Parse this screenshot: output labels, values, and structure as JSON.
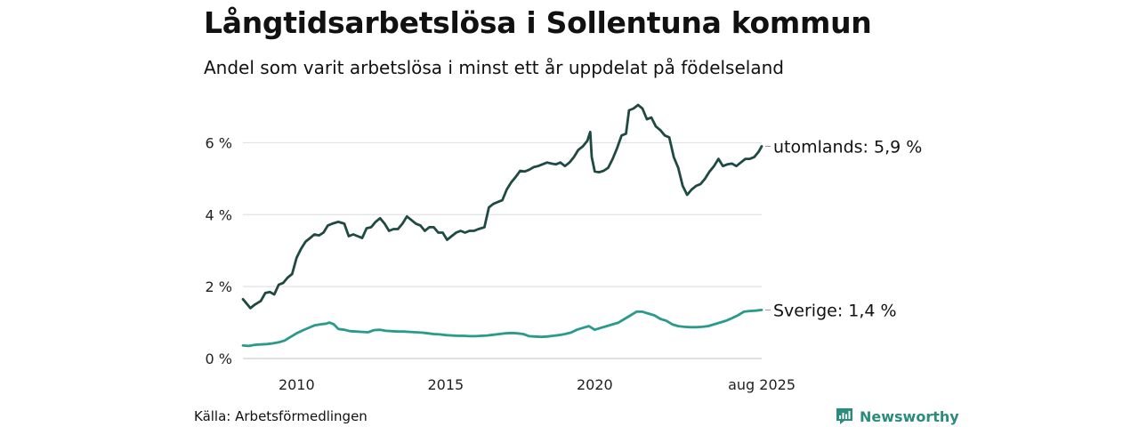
{
  "title": "Långtidsarbetslösa i Sollentuna kommun",
  "subtitle": "Andel som varit arbetslösa i minst ett år uppdelat på födelseland",
  "source": "Källa: Arbetsförmedlingen",
  "brand": {
    "name": "Newsworthy",
    "icon": "newsworthy-logo-icon",
    "color": "#2a8c7e"
  },
  "chart_data": {
    "type": "line",
    "title": "Långtidsarbetslösa i Sollentuna kommun",
    "subtitle": "Andel som varit arbetslösa i minst ett år uppdelat på födelseland",
    "ylim": [
      0,
      7
    ],
    "xlim": [
      2008.2,
      2025.6
    ],
    "y_ticks": [
      {
        "value": 0,
        "label": "0 %"
      },
      {
        "value": 2,
        "label": "2 %"
      },
      {
        "value": 4,
        "label": "4 %"
      },
      {
        "value": 6,
        "label": "6 %"
      }
    ],
    "x_ticks": [
      {
        "value": 2010,
        "label": "2010"
      },
      {
        "value": 2015,
        "label": "2015"
      },
      {
        "value": 2020,
        "label": "2020"
      },
      {
        "value": 2025.6,
        "label": "aug 2025"
      }
    ],
    "grid": "horizontal",
    "series": [
      {
        "name": "utomlands",
        "end_label": "utomlands: 5,9 %",
        "color": "#1f4a42",
        "points": [
          [
            2008.2,
            1.65
          ],
          [
            2008.3,
            1.55
          ],
          [
            2008.45,
            1.4
          ],
          [
            2008.6,
            1.5
          ],
          [
            2008.8,
            1.6
          ],
          [
            2008.95,
            1.82
          ],
          [
            2009.1,
            1.85
          ],
          [
            2009.25,
            1.78
          ],
          [
            2009.4,
            2.05
          ],
          [
            2009.55,
            2.1
          ],
          [
            2009.7,
            2.25
          ],
          [
            2009.85,
            2.35
          ],
          [
            2010.0,
            2.8
          ],
          [
            2010.15,
            3.05
          ],
          [
            2010.3,
            3.25
          ],
          [
            2010.45,
            3.35
          ],
          [
            2010.6,
            3.45
          ],
          [
            2010.75,
            3.42
          ],
          [
            2010.9,
            3.5
          ],
          [
            2011.05,
            3.7
          ],
          [
            2011.2,
            3.75
          ],
          [
            2011.4,
            3.8
          ],
          [
            2011.6,
            3.75
          ],
          [
            2011.75,
            3.4
          ],
          [
            2011.9,
            3.45
          ],
          [
            2012.05,
            3.4
          ],
          [
            2012.2,
            3.35
          ],
          [
            2012.35,
            3.62
          ],
          [
            2012.5,
            3.65
          ],
          [
            2012.65,
            3.8
          ],
          [
            2012.8,
            3.9
          ],
          [
            2012.95,
            3.75
          ],
          [
            2013.1,
            3.55
          ],
          [
            2013.25,
            3.6
          ],
          [
            2013.4,
            3.6
          ],
          [
            2013.55,
            3.75
          ],
          [
            2013.7,
            3.95
          ],
          [
            2013.85,
            3.85
          ],
          [
            2014.0,
            3.75
          ],
          [
            2014.15,
            3.7
          ],
          [
            2014.3,
            3.55
          ],
          [
            2014.45,
            3.65
          ],
          [
            2014.6,
            3.65
          ],
          [
            2014.75,
            3.5
          ],
          [
            2014.9,
            3.5
          ],
          [
            2015.05,
            3.3
          ],
          [
            2015.2,
            3.4
          ],
          [
            2015.35,
            3.5
          ],
          [
            2015.5,
            3.55
          ],
          [
            2015.65,
            3.5
          ],
          [
            2015.8,
            3.55
          ],
          [
            2015.95,
            3.55
          ],
          [
            2016.1,
            3.6
          ],
          [
            2016.3,
            3.65
          ],
          [
            2016.45,
            4.2
          ],
          [
            2016.6,
            4.3
          ],
          [
            2016.75,
            4.35
          ],
          [
            2016.9,
            4.4
          ],
          [
            2017.05,
            4.7
          ],
          [
            2017.2,
            4.9
          ],
          [
            2017.35,
            5.05
          ],
          [
            2017.5,
            5.22
          ],
          [
            2017.65,
            5.2
          ],
          [
            2017.8,
            5.25
          ],
          [
            2017.95,
            5.32
          ],
          [
            2018.1,
            5.35
          ],
          [
            2018.25,
            5.4
          ],
          [
            2018.4,
            5.45
          ],
          [
            2018.55,
            5.42
          ],
          [
            2018.7,
            5.4
          ],
          [
            2018.85,
            5.45
          ],
          [
            2019.0,
            5.35
          ],
          [
            2019.15,
            5.45
          ],
          [
            2019.3,
            5.6
          ],
          [
            2019.45,
            5.8
          ],
          [
            2019.6,
            5.9
          ],
          [
            2019.75,
            6.05
          ],
          [
            2019.85,
            6.3
          ],
          [
            2019.9,
            5.6
          ],
          [
            2020.0,
            5.2
          ],
          [
            2020.15,
            5.18
          ],
          [
            2020.3,
            5.22
          ],
          [
            2020.45,
            5.3
          ],
          [
            2020.6,
            5.55
          ],
          [
            2020.75,
            5.85
          ],
          [
            2020.9,
            6.2
          ],
          [
            2021.05,
            6.25
          ],
          [
            2021.15,
            6.9
          ],
          [
            2021.3,
            6.95
          ],
          [
            2021.45,
            7.05
          ],
          [
            2021.6,
            6.95
          ],
          [
            2021.75,
            6.65
          ],
          [
            2021.9,
            6.7
          ],
          [
            2022.05,
            6.45
          ],
          [
            2022.2,
            6.35
          ],
          [
            2022.35,
            6.2
          ],
          [
            2022.5,
            6.15
          ],
          [
            2022.65,
            5.6
          ],
          [
            2022.8,
            5.3
          ],
          [
            2022.95,
            4.8
          ],
          [
            2023.1,
            4.55
          ],
          [
            2023.25,
            4.7
          ],
          [
            2023.4,
            4.8
          ],
          [
            2023.55,
            4.85
          ],
          [
            2023.7,
            5.0
          ],
          [
            2023.85,
            5.2
          ],
          [
            2024.0,
            5.35
          ],
          [
            2024.15,
            5.55
          ],
          [
            2024.3,
            5.35
          ],
          [
            2024.45,
            5.4
          ],
          [
            2024.6,
            5.42
          ],
          [
            2024.75,
            5.35
          ],
          [
            2024.9,
            5.45
          ],
          [
            2025.05,
            5.55
          ],
          [
            2025.2,
            5.55
          ],
          [
            2025.35,
            5.6
          ],
          [
            2025.5,
            5.75
          ],
          [
            2025.6,
            5.9
          ]
        ]
      },
      {
        "name": "Sverige",
        "end_label": "Sverige: 1,4 %",
        "color": "#2a9a8c",
        "points": [
          [
            2008.2,
            0.36
          ],
          [
            2008.4,
            0.35
          ],
          [
            2008.6,
            0.38
          ],
          [
            2008.8,
            0.39
          ],
          [
            2009.0,
            0.4
          ],
          [
            2009.2,
            0.42
          ],
          [
            2009.4,
            0.45
          ],
          [
            2009.6,
            0.5
          ],
          [
            2009.8,
            0.6
          ],
          [
            2010.0,
            0.7
          ],
          [
            2010.2,
            0.78
          ],
          [
            2010.4,
            0.85
          ],
          [
            2010.6,
            0.92
          ],
          [
            2010.8,
            0.95
          ],
          [
            2011.0,
            0.97
          ],
          [
            2011.1,
            1.0
          ],
          [
            2011.25,
            0.95
          ],
          [
            2011.4,
            0.82
          ],
          [
            2011.6,
            0.8
          ],
          [
            2011.8,
            0.76
          ],
          [
            2012.0,
            0.75
          ],
          [
            2012.2,
            0.74
          ],
          [
            2012.4,
            0.73
          ],
          [
            2012.6,
            0.79
          ],
          [
            2012.8,
            0.8
          ],
          [
            2013.0,
            0.77
          ],
          [
            2013.2,
            0.76
          ],
          [
            2013.4,
            0.75
          ],
          [
            2013.6,
            0.75
          ],
          [
            2013.8,
            0.74
          ],
          [
            2014.0,
            0.73
          ],
          [
            2014.2,
            0.72
          ],
          [
            2014.4,
            0.7
          ],
          [
            2014.6,
            0.68
          ],
          [
            2014.8,
            0.67
          ],
          [
            2015.0,
            0.65
          ],
          [
            2015.2,
            0.64
          ],
          [
            2015.4,
            0.63
          ],
          [
            2015.6,
            0.63
          ],
          [
            2015.8,
            0.62
          ],
          [
            2016.0,
            0.62
          ],
          [
            2016.2,
            0.63
          ],
          [
            2016.4,
            0.64
          ],
          [
            2016.6,
            0.66
          ],
          [
            2016.8,
            0.68
          ],
          [
            2017.0,
            0.7
          ],
          [
            2017.2,
            0.71
          ],
          [
            2017.4,
            0.7
          ],
          [
            2017.6,
            0.68
          ],
          [
            2017.8,
            0.62
          ],
          [
            2018.0,
            0.61
          ],
          [
            2018.2,
            0.6
          ],
          [
            2018.4,
            0.61
          ],
          [
            2018.6,
            0.63
          ],
          [
            2018.8,
            0.65
          ],
          [
            2019.0,
            0.68
          ],
          [
            2019.2,
            0.72
          ],
          [
            2019.4,
            0.8
          ],
          [
            2019.6,
            0.85
          ],
          [
            2019.8,
            0.9
          ],
          [
            2020.0,
            0.8
          ],
          [
            2020.2,
            0.85
          ],
          [
            2020.4,
            0.9
          ],
          [
            2020.6,
            0.95
          ],
          [
            2020.8,
            1.0
          ],
          [
            2021.0,
            1.1
          ],
          [
            2021.2,
            1.2
          ],
          [
            2021.4,
            1.3
          ],
          [
            2021.6,
            1.3
          ],
          [
            2021.8,
            1.25
          ],
          [
            2022.0,
            1.2
          ],
          [
            2022.2,
            1.1
          ],
          [
            2022.4,
            1.05
          ],
          [
            2022.6,
            0.95
          ],
          [
            2022.8,
            0.9
          ],
          [
            2023.0,
            0.88
          ],
          [
            2023.2,
            0.87
          ],
          [
            2023.4,
            0.87
          ],
          [
            2023.6,
            0.88
          ],
          [
            2023.8,
            0.9
          ],
          [
            2024.0,
            0.95
          ],
          [
            2024.2,
            1.0
          ],
          [
            2024.4,
            1.05
          ],
          [
            2024.6,
            1.12
          ],
          [
            2024.8,
            1.2
          ],
          [
            2025.0,
            1.3
          ],
          [
            2025.2,
            1.32
          ],
          [
            2025.4,
            1.33
          ],
          [
            2025.6,
            1.35
          ]
        ]
      }
    ]
  }
}
